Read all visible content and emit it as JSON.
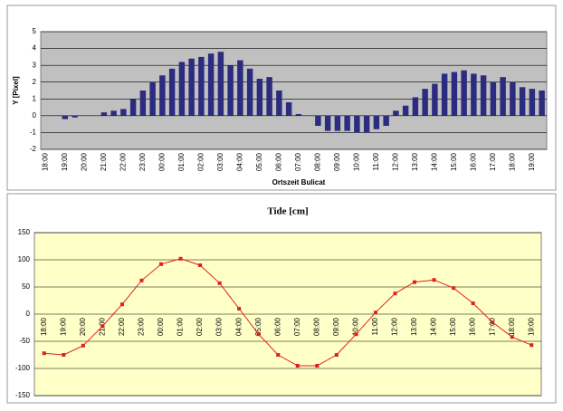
{
  "chart_data": [
    {
      "type": "bar",
      "ylabel": "Y [Pixel]",
      "xlabel": "Ortszeit Bulicat",
      "color": "#2b2b7f",
      "background": "#c0c0c0",
      "grid": true,
      "categories": [
        "18:00",
        null,
        "19:00",
        null,
        "20:00",
        null,
        "21:00",
        null,
        "22:00",
        null,
        "23:00",
        null,
        "00:00",
        null,
        "01:00",
        null,
        "02:00",
        null,
        "03:00",
        null,
        "04:00",
        null,
        "05:00",
        null,
        "06:00",
        null,
        "07:00",
        null,
        "08:00",
        null,
        "09:00",
        null,
        "10:00",
        null,
        "11:00",
        null,
        "12:00",
        null,
        "13:00",
        null,
        "14:00",
        null,
        "15:00",
        null,
        "16:00",
        null,
        "17:00",
        null,
        "18:00",
        null,
        "19:00",
        null
      ],
      "values": [
        0,
        0,
        -0.2,
        -0.1,
        0,
        0,
        0.2,
        0.3,
        0.4,
        1.0,
        1.5,
        2.0,
        2.4,
        2.8,
        3.2,
        3.4,
        3.5,
        3.7,
        3.8,
        3.0,
        3.3,
        2.8,
        2.2,
        2.3,
        1.5,
        0.8,
        0.1,
        0.0,
        -0.6,
        -0.9,
        -0.9,
        -0.9,
        -1.0,
        -1.0,
        -0.8,
        -0.6,
        0.3,
        0.6,
        1.1,
        1.6,
        1.9,
        2.5,
        2.6,
        2.7,
        2.5,
        2.4,
        2.0,
        2.3,
        2.0,
        1.7,
        1.6,
        1.5
      ],
      "ylim": [
        -2,
        5
      ],
      "yticks": [
        -2,
        -1,
        0,
        1,
        2,
        3,
        4,
        5
      ]
    },
    {
      "type": "line",
      "title": "Tide [cm]",
      "color": "#e02020",
      "background": "#ffffc8",
      "grid": true,
      "categories": [
        "18:00",
        "19:00",
        "20:00",
        "21:00",
        "22:00",
        "23:00",
        "00:00",
        "01:00",
        "02:00",
        "03:00",
        "04:00",
        "05:00",
        "06:00",
        "07:00",
        "08:00",
        "09:00",
        "10:00",
        "11:00",
        "12:00",
        "13:00",
        "14:00",
        "15:00",
        "16:00",
        "17:00",
        "18:00",
        "19:00"
      ],
      "values": [
        -72,
        -75,
        -58,
        -22,
        18,
        62,
        92,
        102,
        90,
        57,
        10,
        -37,
        -75,
        -95,
        -95,
        -75,
        -37,
        3,
        38,
        59,
        63,
        48,
        20,
        -15,
        -42,
        -57
      ],
      "ylim": [
        -150,
        150
      ],
      "yticks": [
        -150,
        -100,
        -50,
        0,
        50,
        100,
        150
      ]
    }
  ]
}
